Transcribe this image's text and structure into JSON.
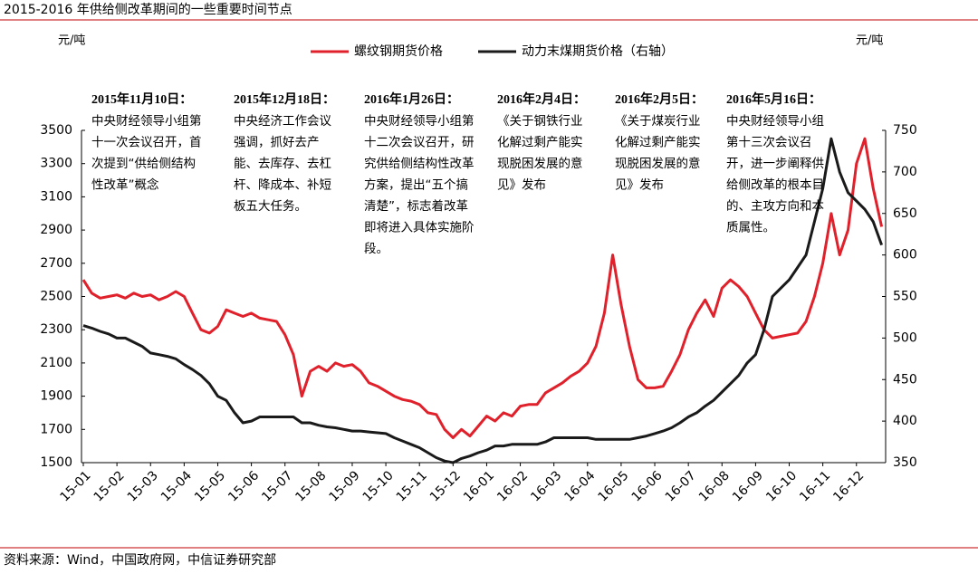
{
  "chart_data": {
    "type": "line",
    "title": "2015-2016 年供给侧改革期间的一些重要时间节点",
    "source": "资料来源：Wind，中国政府网，中信证券研究部",
    "y_unit": "元/吨",
    "y2_unit": "元/吨",
    "categories": [
      "15-01",
      null,
      null,
      null,
      "15-02",
      null,
      null,
      null,
      "15-03",
      null,
      null,
      null,
      "15-04",
      null,
      null,
      null,
      "15-05",
      null,
      null,
      null,
      "15-06",
      null,
      null,
      null,
      "15-07",
      null,
      null,
      null,
      "15-08",
      null,
      null,
      null,
      "15-09",
      null,
      null,
      null,
      "15-10",
      null,
      null,
      null,
      "15-11",
      null,
      null,
      null,
      "15-12",
      null,
      null,
      null,
      "16-01",
      null,
      null,
      null,
      "16-02",
      null,
      null,
      null,
      "16-03",
      null,
      null,
      null,
      "16-04",
      null,
      null,
      null,
      "16-05",
      null,
      null,
      null,
      "16-06",
      null,
      null,
      null,
      "16-07",
      null,
      null,
      null,
      "16-08",
      null,
      null,
      null,
      "16-09",
      null,
      null,
      null,
      "16-10",
      null,
      null,
      null,
      "16-11",
      null,
      null,
      null,
      "16-12",
      null,
      null,
      null
    ],
    "series": [
      {
        "name": "螺纹钢期货价格",
        "color": "#e0202a",
        "axis": "y",
        "values": [
          2600,
          2520,
          2490,
          2500,
          2510,
          2490,
          2520,
          2500,
          2510,
          2480,
          2500,
          2530,
          2500,
          2400,
          2300,
          2280,
          2320,
          2420,
          2400,
          2380,
          2400,
          2370,
          2360,
          2350,
          2270,
          2150,
          1900,
          2050,
          2080,
          2050,
          2100,
          2080,
          2090,
          2050,
          1980,
          1960,
          1930,
          1900,
          1880,
          1870,
          1850,
          1800,
          1790,
          1700,
          1650,
          1700,
          1660,
          1720,
          1780,
          1750,
          1800,
          1780,
          1840,
          1850,
          1850,
          1920,
          1950,
          1980,
          2020,
          2050,
          2100,
          2200,
          2400,
          2750,
          2450,
          2200,
          2000,
          1950,
          1950,
          1960,
          2050,
          2150,
          2300,
          2400,
          2480,
          2380,
          2550,
          2600,
          2560,
          2500,
          2400,
          2300,
          2250,
          2260,
          2270,
          2280,
          2350,
          2500,
          2700,
          3000,
          2750,
          2900,
          3300,
          3450,
          3150,
          2920
        ]
      },
      {
        "name": "动力末煤期货价格（右轴）",
        "color": "#1a1a1a",
        "axis": "y2",
        "values": [
          515,
          512,
          508,
          505,
          500,
          500,
          495,
          490,
          482,
          480,
          478,
          475,
          468,
          462,
          455,
          445,
          430,
          425,
          410,
          398,
          400,
          405,
          405,
          405,
          405,
          405,
          398,
          398,
          395,
          393,
          392,
          390,
          388,
          388,
          387,
          386,
          385,
          380,
          376,
          372,
          368,
          362,
          356,
          352,
          350,
          355,
          358,
          362,
          365,
          370,
          370,
          372,
          372,
          372,
          372,
          375,
          380,
          380,
          380,
          380,
          380,
          378,
          378,
          378,
          378,
          378,
          380,
          382,
          385,
          388,
          392,
          398,
          405,
          410,
          418,
          425,
          435,
          445,
          455,
          470,
          480,
          510,
          550,
          560,
          570,
          585,
          600,
          640,
          680,
          740,
          700,
          675,
          665,
          655,
          640,
          612
        ]
      }
    ],
    "ylim": [
      1500,
      3500
    ],
    "yticks": [
      1500,
      1700,
      1900,
      2100,
      2300,
      2500,
      2700,
      2900,
      3100,
      3300,
      3500
    ],
    "y2lim": [
      350,
      750
    ],
    "y2ticks": [
      350,
      400,
      450,
      500,
      550,
      600,
      650,
      700,
      750
    ],
    "annotations": [
      {
        "date": "2015年11月10日：",
        "lines": [
          "中央财经领导小组第",
          "十一次会议召开，首",
          "次提到“供给侧结构",
          "性改革”概念"
        ]
      },
      {
        "date": "2015年12月18日：",
        "lines": [
          "中央经济工作会议",
          "强调，抓好去产",
          "能、去库存、去杠",
          "杆、降成本、补短",
          "板五大任务。"
        ]
      },
      {
        "date": "2016年1月26日：",
        "lines": [
          "中央财经领导小组第",
          "十二次会议召开，研",
          "究供给侧结构性改革",
          "方案，提出“五个搞",
          "清楚”，标志着改革",
          "即将进入具体实施阶",
          "段。"
        ]
      },
      {
        "date": "2016年2月4日：",
        "lines": [
          "《关于钢铁行业",
          "化解过剩产能实",
          "现脱困发展的意",
          "见》发布"
        ]
      },
      {
        "date": "2016年2月5日：",
        "lines": [
          "《关于煤炭行业",
          "化解过剩产能实",
          "现脱困发展的意",
          "见》发布"
        ]
      },
      {
        "date": "2016年5月16日：",
        "lines": [
          "中央财经领导小组",
          "第十三次会议召",
          "开，进一步阐释供",
          "给侧改革的根本目",
          "的、主攻方向和本",
          "质属性。"
        ]
      }
    ]
  }
}
